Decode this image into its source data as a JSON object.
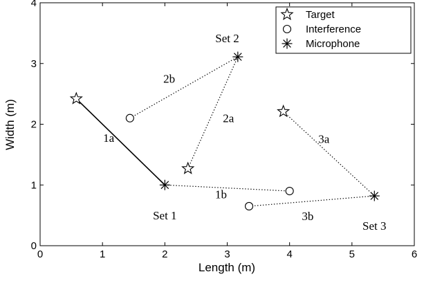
{
  "chart_data": {
    "type": "scatter",
    "xlabel": "Length (m)",
    "ylabel": "Width (m)",
    "xlim": [
      0,
      6
    ],
    "ylim": [
      0,
      4
    ],
    "xticks": [
      "0",
      "1",
      "2",
      "3",
      "4",
      "5",
      "6"
    ],
    "yticks": [
      "0",
      "1",
      "2",
      "3",
      "4"
    ],
    "grid": false,
    "legend": {
      "placement": "top-right",
      "entries": [
        {
          "label": "Target",
          "marker": "star-icon"
        },
        {
          "label": "Interference",
          "marker": "circle-icon"
        },
        {
          "label": "Microphone",
          "marker": "asterisk-icon"
        }
      ]
    },
    "points": [
      {
        "type": "target",
        "x": 0.58,
        "y": 2.42
      },
      {
        "type": "target",
        "x": 2.37,
        "y": 1.27
      },
      {
        "type": "target",
        "x": 3.9,
        "y": 2.21
      },
      {
        "type": "interference",
        "x": 1.44,
        "y": 2.1
      },
      {
        "type": "interference",
        "x": 4.0,
        "y": 0.9
      },
      {
        "type": "interference",
        "x": 3.35,
        "y": 0.65
      },
      {
        "type": "microphone",
        "x": 2.0,
        "y": 1.0
      },
      {
        "type": "microphone",
        "x": 3.17,
        "y": 3.11
      },
      {
        "type": "microphone",
        "x": 5.36,
        "y": 0.82
      }
    ],
    "segments": [
      {
        "label": "1a",
        "style": "solid",
        "from": [
          0.58,
          2.42
        ],
        "to": [
          2.0,
          1.0
        ]
      },
      {
        "label": "1b",
        "style": "dotted",
        "from": [
          2.0,
          1.0
        ],
        "to": [
          4.0,
          0.9
        ]
      },
      {
        "label": "2a",
        "style": "dotted",
        "from": [
          2.37,
          1.27
        ],
        "to": [
          3.17,
          3.11
        ]
      },
      {
        "label": "2b",
        "style": "dotted",
        "from": [
          1.44,
          2.1
        ],
        "to": [
          3.17,
          3.11
        ]
      },
      {
        "label": "3a",
        "style": "dotted",
        "from": [
          3.9,
          2.21
        ],
        "to": [
          5.36,
          0.82
        ]
      },
      {
        "label": "3b",
        "style": "dotted",
        "from": [
          3.35,
          0.65
        ],
        "to": [
          5.36,
          0.82
        ]
      }
    ],
    "annotations": [
      {
        "text": "1a",
        "x": 1.1,
        "y": 1.78
      },
      {
        "text": "1b",
        "x": 2.9,
        "y": 0.85
      },
      {
        "text": "2a",
        "x": 3.02,
        "y": 2.1
      },
      {
        "text": "2b",
        "x": 2.07,
        "y": 2.75
      },
      {
        "text": "3a",
        "x": 4.55,
        "y": 1.76
      },
      {
        "text": "3b",
        "x": 4.29,
        "y": 0.49
      },
      {
        "text": "Set 1",
        "x": 2.0,
        "y": 0.5
      },
      {
        "text": "Set 2",
        "x": 3.0,
        "y": 3.42
      },
      {
        "text": "Set 3",
        "x": 5.36,
        "y": 0.33
      }
    ]
  }
}
